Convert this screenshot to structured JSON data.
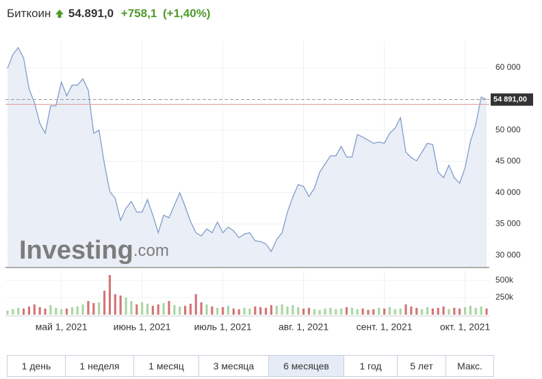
{
  "header": {
    "name": "Биткоин",
    "price": "54.891,0",
    "change": "+758,1",
    "change_pct": "(+1,40%)"
  },
  "watermark": {
    "brand": "Investing",
    "suffix": ".com"
  },
  "ranges": [
    {
      "label": "1 день"
    },
    {
      "label": "1 неделя"
    },
    {
      "label": "1 месяц"
    },
    {
      "label": "3 месяца"
    },
    {
      "label": "6 месяцев",
      "active": true
    },
    {
      "label": "1 год"
    },
    {
      "label": "5 лет"
    },
    {
      "label": "Макс."
    }
  ],
  "chart_data": {
    "type": "line",
    "categories": [
      null,
      null,
      null,
      null,
      null,
      null,
      null,
      null,
      null,
      null,
      "май 1, 2021",
      null,
      null,
      null,
      null,
      null,
      null,
      null,
      null,
      null,
      null,
      null,
      null,
      null,
      null,
      "июнь 1, 2021",
      null,
      null,
      null,
      null,
      null,
      null,
      null,
      null,
      null,
      null,
      null,
      null,
      null,
      null,
      "июль 1, 2021",
      null,
      null,
      null,
      null,
      null,
      null,
      null,
      null,
      null,
      null,
      null,
      null,
      null,
      null,
      "авг. 1, 2021",
      null,
      null,
      null,
      null,
      null,
      null,
      null,
      null,
      null,
      null,
      null,
      null,
      null,
      null,
      "сент. 1, 2021",
      null,
      null,
      null,
      null,
      null,
      null,
      null,
      null,
      null,
      null,
      null,
      null,
      null,
      null,
      "окт. 1, 2021",
      null,
      null,
      null,
      null
    ],
    "series": [
      {
        "color": "#7f9cc8",
        "fill": "#e9eef7",
        "values": [
          59900,
          62100,
          63200,
          61500,
          56600,
          54400,
          51100,
          49500,
          53900,
          53900,
          57700,
          55500,
          57200,
          57200,
          58200,
          56400,
          49500,
          50000,
          44600,
          40200,
          39100,
          35600,
          37500,
          38600,
          36900,
          36900,
          38900,
          36400,
          33600,
          36400,
          36000,
          38000,
          40000,
          37800,
          35400,
          33600,
          33100,
          34200,
          33600,
          35300,
          33600,
          34500,
          33900,
          32800,
          33400,
          33600,
          32300,
          32200,
          31800,
          30600,
          32500,
          33600,
          36900,
          39300,
          41300,
          41000,
          39400,
          40700,
          43300,
          44600,
          45900,
          45900,
          47400,
          45700,
          45700,
          49300,
          48900,
          48400,
          47900,
          48100,
          47900,
          49500,
          50300,
          52000,
          46500,
          45600,
          45100,
          46500,
          47900,
          47700,
          43300,
          42400,
          44400,
          42400,
          41500,
          44000,
          48200,
          50900,
          55300,
          54891
        ]
      }
    ],
    "ylim": [
      28150,
      64250
    ],
    "yticks": [
      {
        "value": 30000,
        "label": "30 000"
      },
      {
        "value": 35000,
        "label": "35 000"
      },
      {
        "value": 40000,
        "label": "40 000"
      },
      {
        "value": 45000,
        "label": "45 000"
      },
      {
        "value": 50000,
        "label": "50 000"
      },
      {
        "value": 60000,
        "label": "60 000"
      }
    ],
    "current": {
      "value": 54891,
      "label": "54 891,00"
    },
    "reference_line": 54133,
    "grid": true,
    "volume": {
      "up_color": "#a9d6a1",
      "down_color": "#d47478",
      "values": [
        60000,
        80000,
        100000,
        90000,
        120000,
        150000,
        110000,
        90000,
        140000,
        100000,
        80000,
        90000,
        110000,
        120000,
        150000,
        200000,
        170000,
        180000,
        350000,
        580000,
        300000,
        280000,
        250000,
        200000,
        150000,
        180000,
        160000,
        130000,
        150000,
        170000,
        200000,
        140000,
        120000,
        130000,
        160000,
        300000,
        180000,
        150000,
        120000,
        100000,
        110000,
        130000,
        90000,
        80000,
        100000,
        90000,
        120000,
        110000,
        100000,
        140000,
        130000,
        150000,
        120000,
        140000,
        110000,
        90000,
        100000,
        80000,
        70000,
        90000,
        100000,
        80000,
        90000,
        110000,
        100000,
        80000,
        90000,
        70000,
        80000,
        100000,
        90000,
        110000,
        80000,
        90000,
        150000,
        120000,
        100000,
        80000,
        110000,
        90000,
        100000,
        120000,
        80000,
        100000,
        90000,
        110000,
        130000,
        100000,
        120000,
        90000
      ],
      "ylim": [
        0,
        650000
      ],
      "yticks": [
        {
          "value": 250000,
          "label": "250k"
        },
        {
          "value": 500000,
          "label": "500k"
        }
      ]
    }
  }
}
